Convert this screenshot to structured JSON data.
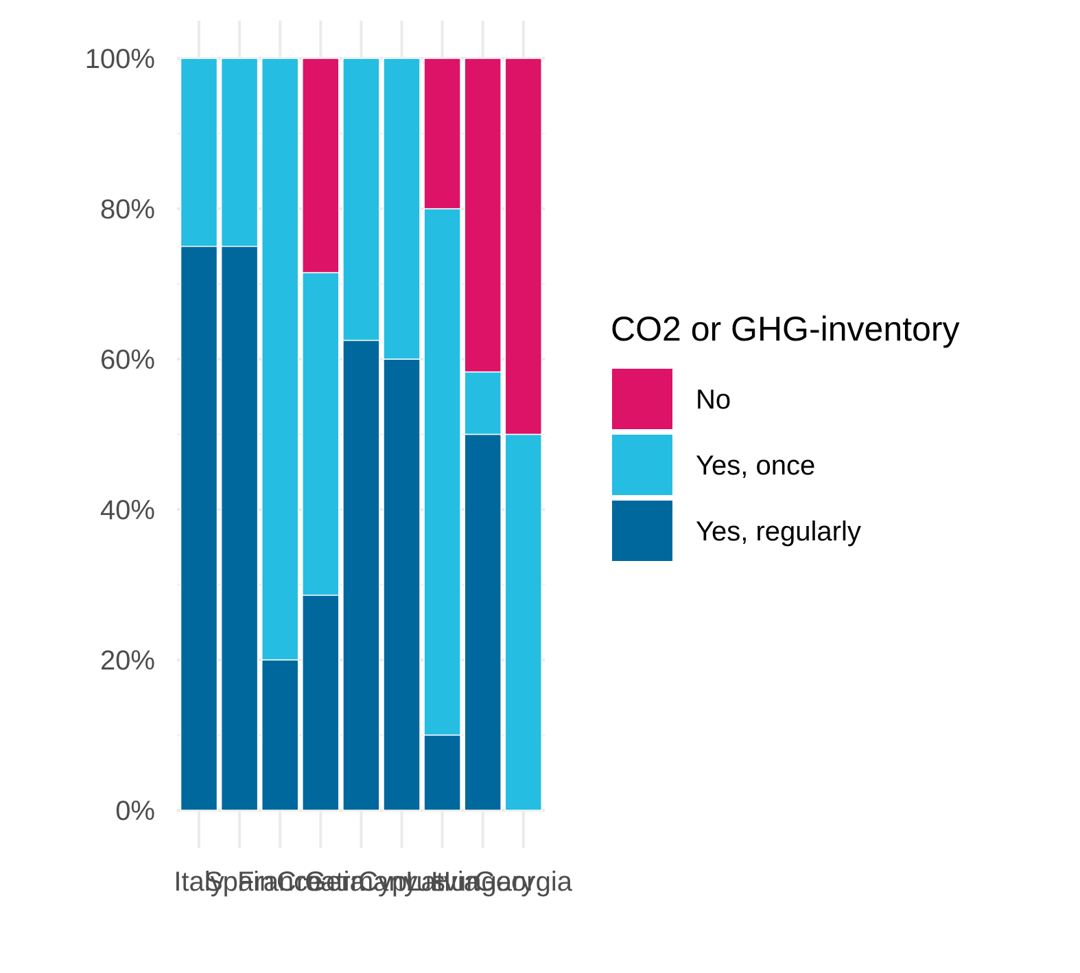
{
  "chart_data": {
    "type": "bar",
    "stacked": true,
    "categories": [
      "Italy",
      "Spain",
      "France",
      "Croatia",
      "Germany",
      "Cyprus",
      "Latvia",
      "Hungary",
      "Georgia"
    ],
    "series": [
      {
        "name": "Yes, regularly",
        "color": "#00689d",
        "values": [
          75,
          75,
          20,
          28.6,
          62.5,
          60,
          10,
          50,
          0
        ]
      },
      {
        "name": "Yes, once",
        "color": "#26bde2",
        "values": [
          25,
          25,
          80,
          42.9,
          37.5,
          40,
          70,
          8.3,
          50
        ]
      },
      {
        "name": "No",
        "color": "#dd1367",
        "values": [
          0,
          0,
          0,
          28.5,
          0,
          0,
          20,
          41.7,
          50
        ]
      }
    ],
    "y_ticks": [
      "0%",
      "20%",
      "40%",
      "60%",
      "80%",
      "100%"
    ],
    "ylim": [
      0,
      100
    ],
    "grid": true,
    "legend": {
      "title": "CO2 or GHG-inventory",
      "placement": "right",
      "entries": [
        {
          "label": "No",
          "color": "#dd1367"
        },
        {
          "label": "Yes, once",
          "color": "#26bde2"
        },
        {
          "label": "Yes, regularly",
          "color": "#00689d"
        }
      ]
    },
    "title": "",
    "xlabel": "",
    "ylabel": ""
  }
}
